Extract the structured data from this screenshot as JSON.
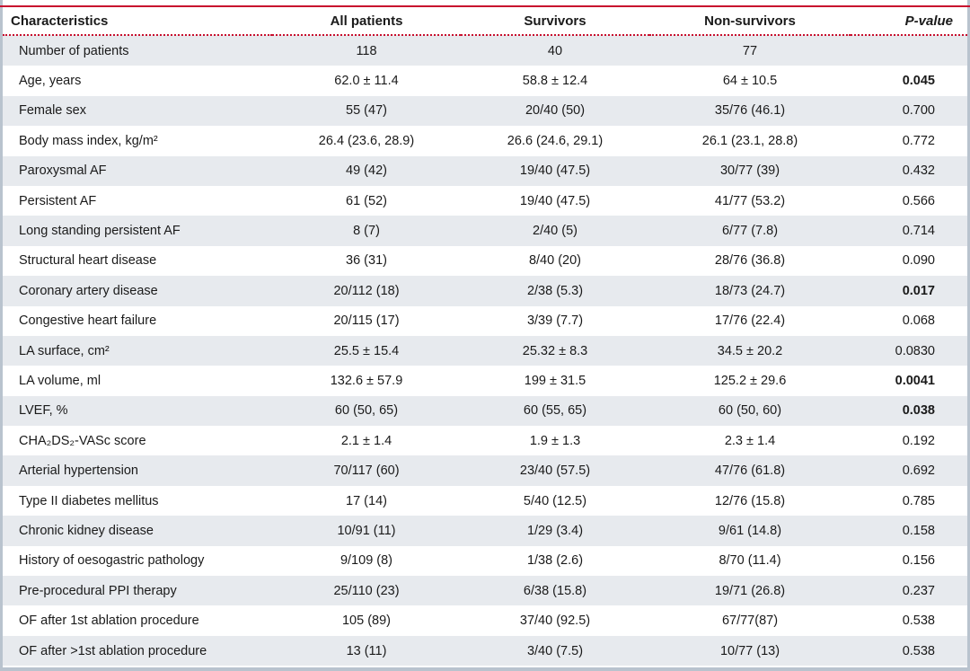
{
  "header": {
    "characteristics": "Characteristics",
    "all_patients": "All patients",
    "survivors": "Survivors",
    "non_survivors": "Non-survivors",
    "p_value": "P-value"
  },
  "rows": [
    {
      "label": "Number of patients",
      "all": "118",
      "surv": "40",
      "nonsurv": "77",
      "p": "",
      "p_bold": false
    },
    {
      "label": "Age, years",
      "all": "62.0 ± 11.4",
      "surv": "58.8 ± 12.4",
      "nonsurv": "64 ± 10.5",
      "p": "0.045",
      "p_bold": true
    },
    {
      "label": "Female sex",
      "all": "55 (47)",
      "surv": "20/40 (50)",
      "nonsurv": "35/76 (46.1)",
      "p": "0.700",
      "p_bold": false
    },
    {
      "label": "Body mass index, kg/m²",
      "all": "26.4 (23.6, 28.9)",
      "surv": "26.6 (24.6, 29.1)",
      "nonsurv": "26.1 (23.1, 28.8)",
      "p": "0.772",
      "p_bold": false
    },
    {
      "label": "Paroxysmal AF",
      "all": "49 (42)",
      "surv": "19/40 (47.5)",
      "nonsurv": "30/77 (39)",
      "p": "0.432",
      "p_bold": false
    },
    {
      "label": "Persistent AF",
      "all": "61 (52)",
      "surv": "19/40 (47.5)",
      "nonsurv": "41/77 (53.2)",
      "p": "0.566",
      "p_bold": false
    },
    {
      "label": "Long standing persistent AF",
      "all": "8 (7)",
      "surv": "2/40 (5)",
      "nonsurv": "6/77 (7.8)",
      "p": "0.714",
      "p_bold": false
    },
    {
      "label": "Structural heart disease",
      "all": "36 (31)",
      "surv": "8/40 (20)",
      "nonsurv": "28/76 (36.8)",
      "p": "0.090",
      "p_bold": false
    },
    {
      "label": "Coronary artery disease",
      "all": "20/112 (18)",
      "surv": "2/38 (5.3)",
      "nonsurv": "18/73 (24.7)",
      "p": "0.017",
      "p_bold": true
    },
    {
      "label": "Congestive heart failure",
      "all": "20/115 (17)",
      "surv": "3/39 (7.7)",
      "nonsurv": "17/76 (22.4)",
      "p": "0.068",
      "p_bold": false
    },
    {
      "label": "LA surface, cm²",
      "all": "25.5 ± 15.4",
      "surv": "25.32 ± 8.3",
      "nonsurv": "34.5 ± 20.2",
      "p": "0.0830",
      "p_bold": false
    },
    {
      "label": "LA volume, ml",
      "all": "132.6 ± 57.9",
      "surv": "199 ± 31.5",
      "nonsurv": "125.2 ± 29.6",
      "p": "0.0041",
      "p_bold": true
    },
    {
      "label": "LVEF, %",
      "all": "60 (50, 65)",
      "surv": "60 (55, 65)",
      "nonsurv": "60 (50, 60)",
      "p": "0.038",
      "p_bold": true
    },
    {
      "label": "CHA₂DS₂-VASc score",
      "all": "2.1 ± 1.4",
      "surv": "1.9 ± 1.3",
      "nonsurv": "2.3 ± 1.4",
      "p": "0.192",
      "p_bold": false
    },
    {
      "label": "Arterial hypertension",
      "all": "70/117 (60)",
      "surv": "23/40 (57.5)",
      "nonsurv": "47/76 (61.8)",
      "p": "0.692",
      "p_bold": false
    },
    {
      "label": "Type II diabetes mellitus",
      "all": "17 (14)",
      "surv": "5/40 (12.5)",
      "nonsurv": "12/76 (15.8)",
      "p": "0.785",
      "p_bold": false
    },
    {
      "label": "Chronic kidney disease",
      "all": "10/91 (11)",
      "surv": "1/29 (3.4)",
      "nonsurv": "9/61 (14.8)",
      "p": "0.158",
      "p_bold": false
    },
    {
      "label": "History of oesogastric pathology",
      "all": "9/109 (8)",
      "surv": "1/38 (2.6)",
      "nonsurv": "8/70 (11.4)",
      "p": "0.156",
      "p_bold": false
    },
    {
      "label": "Pre-procedural PPI therapy",
      "all": "25/110 (23)",
      "surv": "6/38 (15.8)",
      "nonsurv": "19/71 (26.8)",
      "p": "0.237",
      "p_bold": false
    },
    {
      "label": "OF after 1st ablation procedure",
      "all": "105 (89)",
      "surv": "37/40 (92.5)",
      "nonsurv": "67/77(87)",
      "p": "0.538",
      "p_bold": false
    },
    {
      "label": "OF after >1st ablation procedure",
      "all": "13 (11)",
      "surv": "3/40 (7.5)",
      "nonsurv": "10/77 (13)",
      "p": "0.538",
      "p_bold": false
    }
  ]
}
